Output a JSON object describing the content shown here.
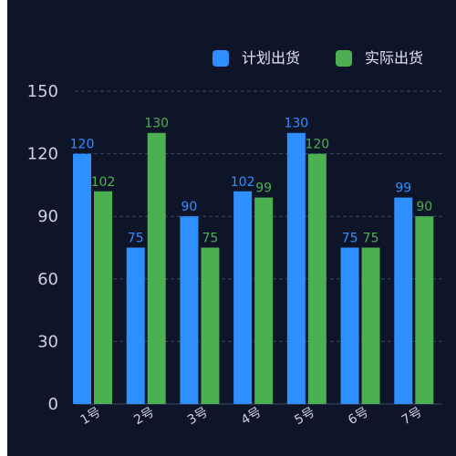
{
  "chart_data": {
    "type": "bar",
    "categories": [
      "1号",
      "2号",
      "3号",
      "4号",
      "5号",
      "6号",
      "7号"
    ],
    "series": [
      {
        "name": "计划出货",
        "values": [
          120,
          75,
          90,
          102,
          130,
          75,
          99
        ],
        "color": "#2e8fff"
      },
      {
        "name": "实际出货",
        "values": [
          102,
          130,
          75,
          99,
          120,
          75,
          90
        ],
        "color": "#4caf50"
      }
    ],
    "ylim": [
      0,
      150
    ],
    "yticks": [
      0,
      30,
      60,
      90,
      120,
      150
    ],
    "grid": true,
    "legend": "top-right",
    "colors": {
      "background": "#0e1529",
      "grid": "#3a4666",
      "axis_text": "#c9d1e6"
    }
  }
}
